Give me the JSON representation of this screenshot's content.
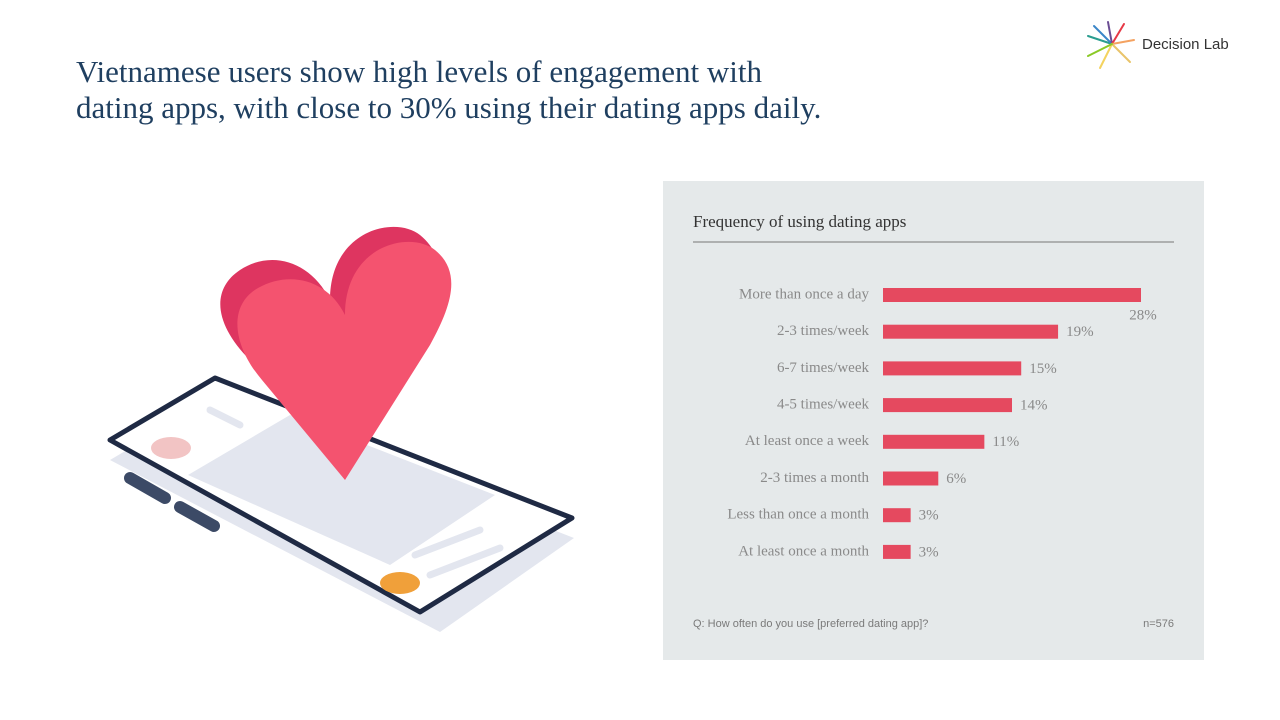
{
  "header": {
    "headline": [
      "Vietnamese users show high levels of engagement with",
      "dating apps, with close to 30% using their dating apps daily."
    ],
    "logo": "Decision Lab"
  },
  "chart_data": {
    "type": "hbar",
    "title": "Frequency of using dating apps",
    "categories": [
      "More than once a day",
      "2-3 times/week",
      "6-7 times/week",
      "4-5 times/week",
      "At least once a week",
      "2-3 times a month",
      "Less than once a month",
      "At least once a month"
    ],
    "values": [
      28,
      19,
      15,
      14,
      11,
      6,
      3,
      3
    ],
    "value_labels": [
      "28%",
      "19%",
      "15%",
      "14%",
      "11%",
      "6%",
      "3%",
      "3%"
    ],
    "color": "#e5495f",
    "question": "Q: How often do you use [preferred dating app]?",
    "sample": "n=576"
  }
}
